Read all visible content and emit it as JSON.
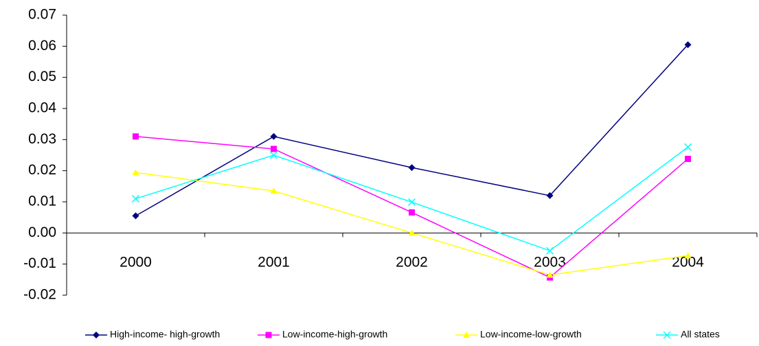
{
  "chart_data": {
    "type": "line",
    "categories": [
      "2000",
      "2001",
      "2002",
      "2003",
      "2004"
    ],
    "series": [
      {
        "name": "High-income- high-growth",
        "color": "#000080",
        "marker": "diamond",
        "values": [
          0.0055,
          0.031,
          0.021,
          0.012,
          0.0605
        ]
      },
      {
        "name": "Low-income-high-growth",
        "color": "#ff00ff",
        "marker": "square",
        "values": [
          0.031,
          0.027,
          0.0066,
          -0.0143,
          0.0238
        ]
      },
      {
        "name": "Low-income-low-growth",
        "color": "#ffff00",
        "marker": "triangle",
        "values": [
          0.0194,
          0.0135,
          0.0,
          -0.0135,
          -0.0073
        ]
      },
      {
        "name": "All states",
        "color": "#00ffff",
        "marker": "x",
        "values": [
          0.011,
          0.025,
          0.0099,
          -0.0057,
          0.0276
        ]
      }
    ],
    "ylim": [
      -0.02,
      0.07
    ],
    "yticks": [
      -0.02,
      -0.01,
      {
        "value": 0,
        "label": "0.00"
      },
      0.01,
      0.02,
      0.03,
      0.04,
      0.05,
      0.06,
      0.07
    ],
    "legend": "bottom"
  }
}
